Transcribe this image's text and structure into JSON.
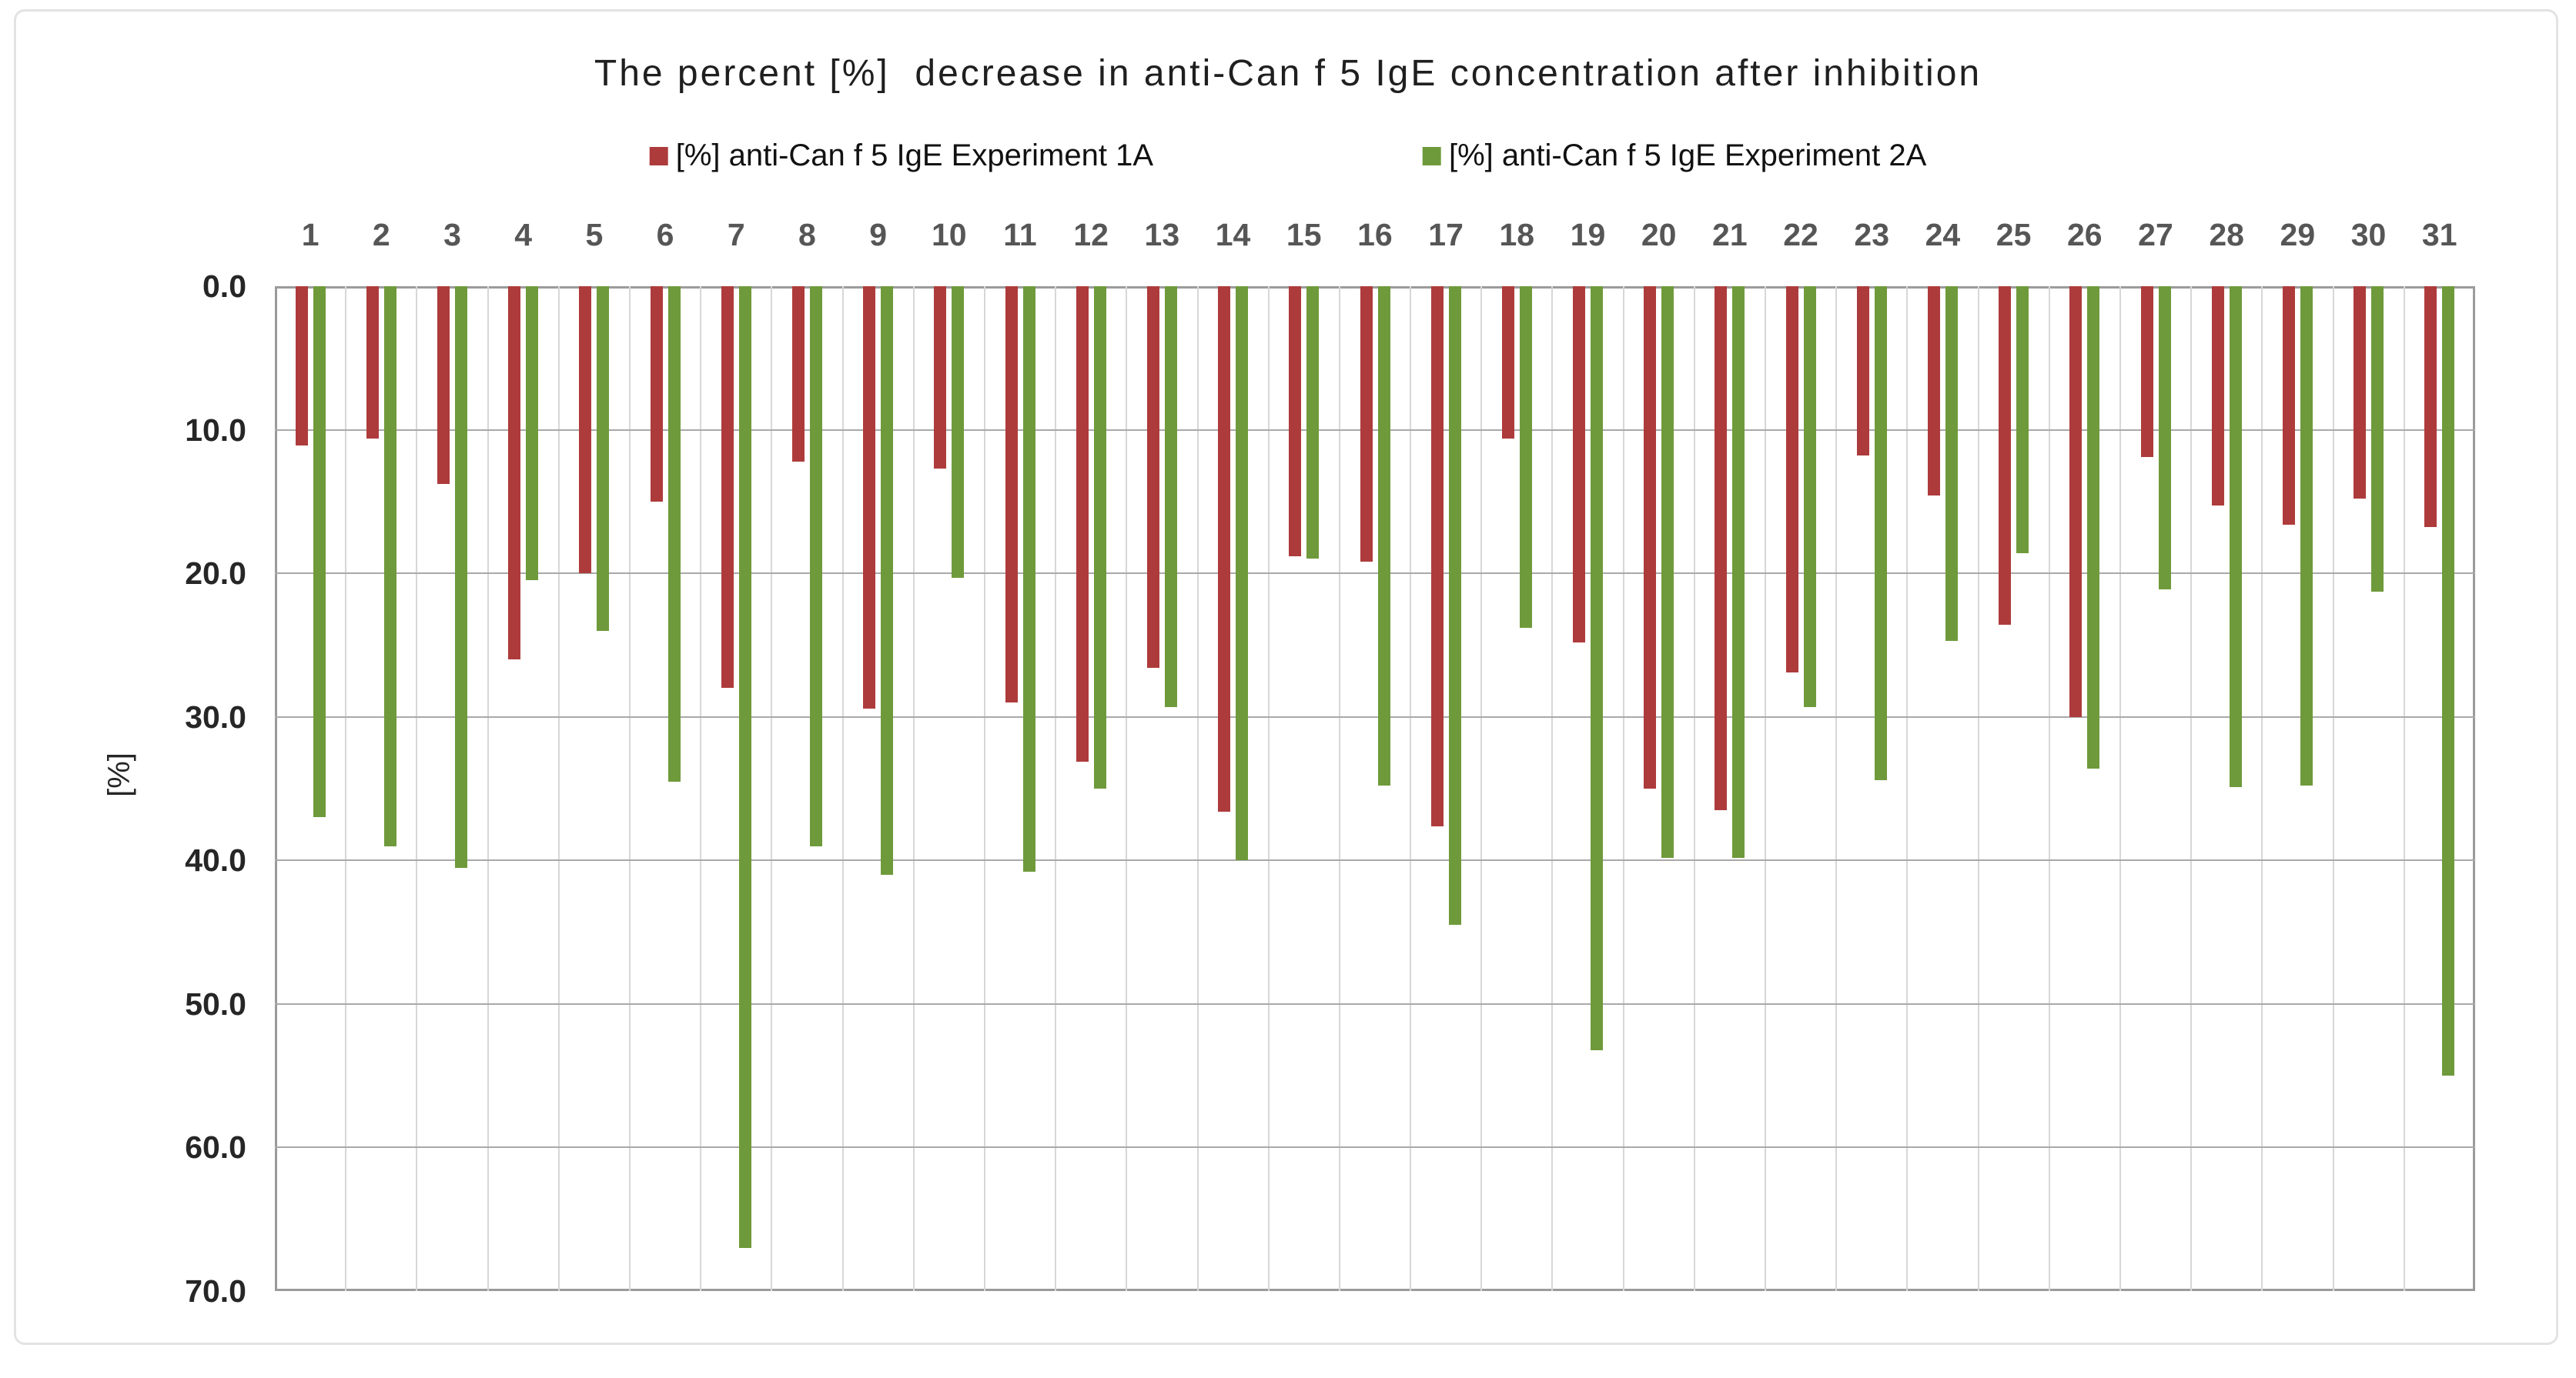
{
  "chart_data": {
    "type": "bar",
    "title": "The percent [%]  decrease in anti-Can f 5 IgE concentration after inhibition",
    "ylabel": "[%]",
    "bar_direction": "downward",
    "yaxis": {
      "min": 0,
      "max": 70,
      "inverted": true
    },
    "yticks": [
      "0.0",
      "10.0",
      "20.0",
      "30.0",
      "40.0",
      "50.0",
      "60.0",
      "70.0"
    ],
    "grid": true,
    "legend_position": "top",
    "categories": [
      "1",
      "2",
      "3",
      "4",
      "5",
      "6",
      "7",
      "8",
      "9",
      "10",
      "11",
      "12",
      "13",
      "14",
      "15",
      "16",
      "17",
      "18",
      "19",
      "20",
      "21",
      "22",
      "23",
      "24",
      "25",
      "26",
      "27",
      "28",
      "29",
      "30",
      "31"
    ],
    "series": [
      {
        "name": "[%] anti-Can f 5 IgE Experiment 1A",
        "color": "#ae3b3b",
        "values": [
          11.1,
          10.6,
          13.8,
          26.0,
          20.0,
          15.0,
          28.0,
          12.2,
          29.4,
          12.7,
          29.0,
          33.1,
          26.6,
          36.6,
          18.8,
          19.2,
          37.6,
          10.6,
          24.8,
          35.0,
          36.5,
          26.9,
          11.8,
          14.6,
          23.6,
          30.0,
          11.9,
          15.3,
          16.6,
          14.8,
          16.8
        ]
      },
      {
        "name": "[%] anti-Can f 5 IgE Experiment 2A",
        "color": "#6f9a3b",
        "values": [
          37.0,
          39.0,
          40.5,
          20.5,
          24.0,
          34.5,
          67.0,
          39.0,
          41.0,
          20.3,
          40.8,
          35.0,
          29.3,
          40.0,
          19.0,
          34.8,
          44.5,
          23.8,
          53.2,
          39.8,
          39.8,
          29.3,
          34.4,
          24.7,
          18.6,
          33.6,
          21.1,
          34.9,
          34.8,
          21.3,
          55.0
        ]
      }
    ],
    "style": {
      "h_gridline_color": "#a9a9a9",
      "v_gridline_color": "#d7d7d7",
      "plot_border_color": "#9b9b9b",
      "tick_label_color": "#565656",
      "axis_label_color": "#262626",
      "panel_border_color": "#e3e3e3",
      "background_color": "#ffffff"
    }
  }
}
